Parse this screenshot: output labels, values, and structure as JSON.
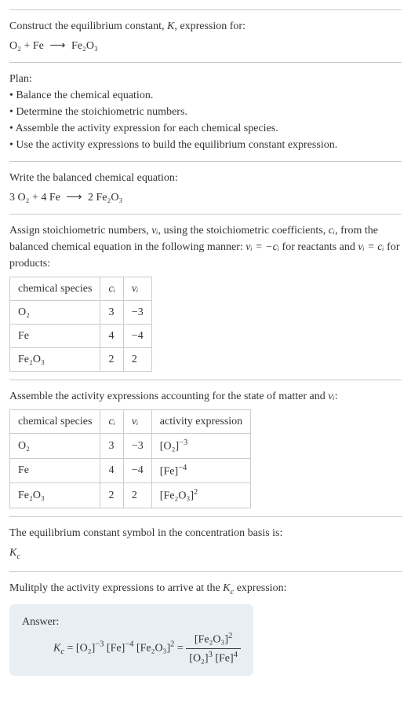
{
  "intro": {
    "line1": "Construct the equilibrium constant, ",
    "Kvar": "K",
    "line1b": ", expression for:",
    "reactants": "O₂ + Fe",
    "arrow": "⟶",
    "products": "Fe₂O₃"
  },
  "plan": {
    "heading": "Plan:",
    "items": [
      "Balance the chemical equation.",
      "Determine the stoichiometric numbers.",
      "Assemble the activity expression for each chemical species.",
      "Use the activity expressions to build the equilibrium constant expression."
    ]
  },
  "balanced": {
    "heading": "Write the balanced chemical equation:",
    "lhs": "3 O₂ + 4 Fe",
    "arrow": "⟶",
    "rhs": "2 Fe₂O₃"
  },
  "stoich": {
    "text_a": "Assign stoichiometric numbers, ",
    "nu_i": "νᵢ",
    "text_b": ", using the stoichiometric coefficients, ",
    "c_i": "cᵢ",
    "text_c": ", from the balanced chemical equation in the following manner: ",
    "eq1": "νᵢ = −cᵢ",
    "text_d": " for reactants and ",
    "eq2": "νᵢ = cᵢ",
    "text_e": " for products:",
    "table": {
      "headers": [
        "chemical species",
        "cᵢ",
        "νᵢ"
      ],
      "rows": [
        [
          "O₂",
          "3",
          "−3"
        ],
        [
          "Fe",
          "4",
          "−4"
        ],
        [
          "Fe₂O₃",
          "2",
          "2"
        ]
      ]
    }
  },
  "activity": {
    "text_a": "Assemble the activity expressions accounting for the state of matter and ",
    "nu_i": "νᵢ",
    "text_b": ":",
    "table": {
      "headers": [
        "chemical species",
        "cᵢ",
        "νᵢ",
        "activity expression"
      ],
      "rows": [
        {
          "species": "O₂",
          "c": "3",
          "nu": "−3",
          "expr_base": "[O₂]",
          "expr_exp": "−3"
        },
        {
          "species": "Fe",
          "c": "4",
          "nu": "−4",
          "expr_base": "[Fe]",
          "expr_exp": "−4"
        },
        {
          "species": "Fe₂O₃",
          "c": "2",
          "nu": "2",
          "expr_base": "[Fe₂O₃]",
          "expr_exp": "2"
        }
      ]
    }
  },
  "symbol": {
    "text": "The equilibrium constant symbol in the concentration basis is:",
    "kc_base": "K",
    "kc_sub": "c"
  },
  "multiply": {
    "text_a": "Mulitply the activity expressions to arrive at the ",
    "kc_base": "K",
    "kc_sub": "c",
    "text_b": " expression:"
  },
  "answer": {
    "label": "Answer:",
    "kc_base": "K",
    "kc_sub": "c",
    "eq": " = ",
    "term1_base": "[O₂]",
    "term1_exp": "−3",
    "term2_base": "[Fe]",
    "term2_exp": "−4",
    "term3_base": "[Fe₂O₃]",
    "term3_exp": "2",
    "eq2": " = ",
    "num_base": "[Fe₂O₃]",
    "num_exp": "2",
    "den1_base": "[O₂]",
    "den1_exp": "3",
    "den2_base": "[Fe]",
    "den2_exp": "4"
  },
  "colors": {
    "text": "#333333",
    "border": "#cccccc",
    "answer_bg": "#e8eef4",
    "bg": "#ffffff"
  }
}
